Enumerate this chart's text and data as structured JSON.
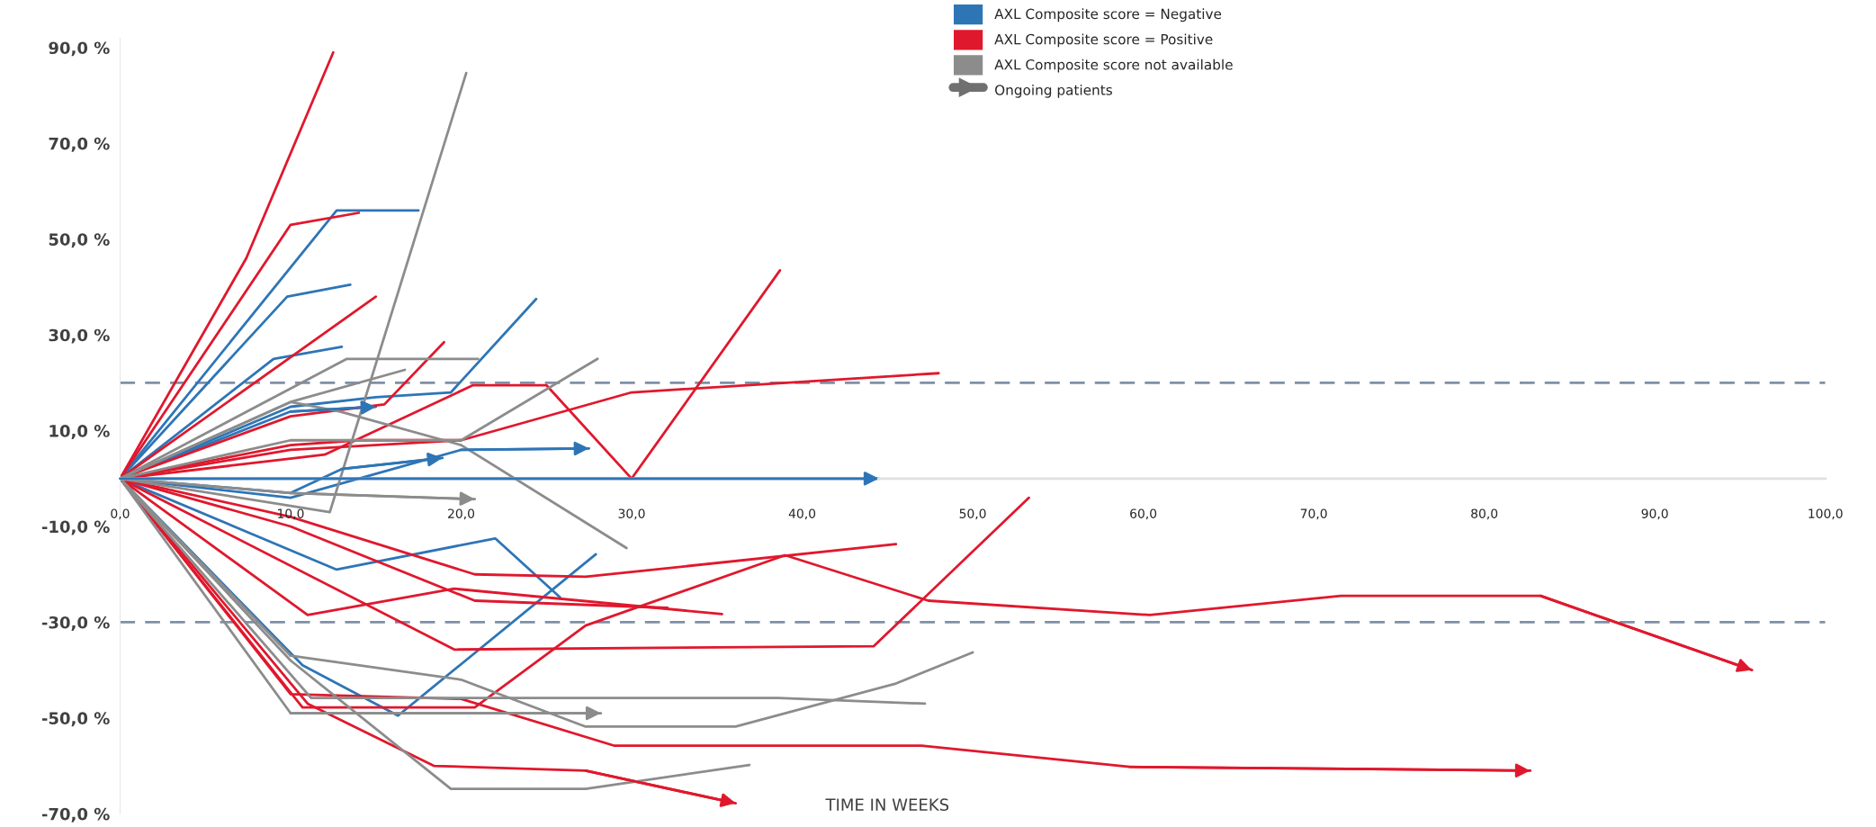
{
  "chart_data": {
    "type": "line",
    "xlabel": "TIME IN WEEKS",
    "xlim": [
      0,
      100
    ],
    "ylim": [
      -70,
      92
    ],
    "xticks": [
      {
        "value": 0,
        "label": "0,0"
      },
      {
        "value": 10,
        "label": "10,0"
      },
      {
        "value": 20,
        "label": "20,0"
      },
      {
        "value": 30,
        "label": "30,0"
      },
      {
        "value": 40,
        "label": "40,0"
      },
      {
        "value": 50,
        "label": "50,0"
      },
      {
        "value": 60,
        "label": "60,0"
      },
      {
        "value": 70,
        "label": "70,0"
      },
      {
        "value": 80,
        "label": "80,0"
      },
      {
        "value": 90,
        "label": "90,0"
      },
      {
        "value": 100,
        "label": "100,0"
      }
    ],
    "yticks": [
      {
        "value": -70,
        "label": "-70,0 %"
      },
      {
        "value": -50,
        "label": "-50,0 %"
      },
      {
        "value": -30,
        "label": "-30,0 %"
      },
      {
        "value": -10,
        "label": "-10,0 %"
      },
      {
        "value": 10,
        "label": "10,0 %"
      },
      {
        "value": 30,
        "label": "30,0 %"
      },
      {
        "value": 50,
        "label": "50,0 %"
      },
      {
        "value": 70,
        "label": "70,0 %"
      },
      {
        "value": 90,
        "label": "90,0 %"
      }
    ],
    "grid": false,
    "legend": "top right",
    "line_style": "solid",
    "annotations": [
      "Ongoing patients"
    ],
    "ref_lines": [
      {
        "axis": "y",
        "value": 20,
        "color": "#7f8fa6",
        "line_style": "dashed"
      },
      {
        "axis": "y",
        "value": -30,
        "color": "#7f8fa6",
        "line_style": "dashed"
      }
    ],
    "series": [
      {
        "name": "AXL Composite score = Negative",
        "color": "#2e75b6",
        "x": [
          0,
          12.7,
          17.5
        ],
        "values": [
          0,
          56,
          56
        ]
      },
      {
        "color": "#2e75b6",
        "x": [
          0,
          9.8,
          13.5
        ],
        "values": [
          0,
          38,
          40.5
        ]
      },
      {
        "color": "#2e75b6",
        "x": [
          0,
          9,
          13
        ],
        "values": [
          0,
          25,
          27.5
        ]
      },
      {
        "color": "#2e75b6",
        "x": [
          0,
          10,
          15,
          19.4,
          24.4
        ],
        "values": [
          0,
          15,
          17,
          18,
          37.5
        ]
      },
      {
        "color": "#2e75b6",
        "x": [
          0,
          10,
          15
        ],
        "values": [
          0,
          14,
          15
        ]
      },
      {
        "color": "#2e75b6",
        "x": [
          0,
          10,
          13,
          18.9
        ],
        "values": [
          0,
          -3,
          2,
          4.3
        ]
      },
      {
        "color": "#2e75b6",
        "x": [
          0,
          10,
          20,
          27.5
        ],
        "values": [
          0,
          -4,
          6,
          6.3
        ]
      },
      {
        "color": "#2e75b6",
        "x": [
          0,
          44.5
        ],
        "values": [
          0,
          0
        ]
      },
      {
        "color": "#2e75b6",
        "x": [
          0,
          12.7,
          22,
          25.8
        ],
        "values": [
          0,
          -19,
          -12.5,
          -24.8
        ]
      },
      {
        "color": "#2e75b6",
        "x": [
          0,
          10.7,
          16.3,
          27.9
        ],
        "values": [
          0,
          -39,
          -49.5,
          -15.8
        ]
      },
      {
        "name": "AXL Composite score = Positive",
        "color": "#e0182d",
        "x": [
          0,
          7.4,
          12.5
        ],
        "values": [
          0,
          46,
          89
        ]
      },
      {
        "color": "#e0182d",
        "x": [
          0,
          10,
          14
        ],
        "values": [
          0,
          53,
          55.5
        ]
      },
      {
        "color": "#e0182d",
        "x": [
          0,
          15
        ],
        "values": [
          0,
          38
        ]
      },
      {
        "color": "#e0182d",
        "x": [
          0,
          10,
          15.5,
          19
        ],
        "values": [
          0,
          13,
          15.5,
          28.5
        ]
      },
      {
        "color": "#e0182d",
        "x": [
          0,
          12,
          20.7,
          25,
          30,
          38.7
        ],
        "values": [
          0,
          5,
          19.5,
          19.5,
          0,
          43.5
        ]
      },
      {
        "color": "#e0182d",
        "x": [
          0,
          10,
          20,
          30,
          48
        ],
        "values": [
          0,
          6,
          8,
          18,
          22
        ]
      },
      {
        "color": "#e0182d",
        "x": [
          0,
          10,
          14,
          20
        ],
        "values": [
          0,
          7,
          8,
          8
        ]
      },
      {
        "color": "#e0182d",
        "x": [
          0,
          19.6,
          44.2,
          53.3
        ],
        "values": [
          0,
          -35.7,
          -35,
          -4
        ]
      },
      {
        "color": "#e0182d",
        "x": [
          0,
          10,
          20.8,
          27.3,
          45.5
        ],
        "values": [
          0,
          -8,
          -20,
          -20.5,
          -13.7
        ]
      },
      {
        "color": "#e0182d",
        "x": [
          0,
          11,
          19.6,
          35.3
        ],
        "values": [
          0,
          -28.5,
          -23,
          -28.3
        ]
      },
      {
        "color": "#e0182d",
        "x": [
          0,
          10,
          20.8,
          32.1
        ],
        "values": [
          0,
          -10,
          -25.5,
          -27
        ]
      },
      {
        "color": "#e0182d",
        "x": [
          0,
          10.7,
          20.8,
          27.3,
          39,
          47.4,
          60.4,
          71.6,
          83.3,
          95.7
        ],
        "values": [
          0,
          -47.8,
          -47.8,
          -30.7,
          -16,
          -25.5,
          -28.5,
          -24.5,
          -24.5,
          -40
        ]
      },
      {
        "color": "#e0182d",
        "x": [
          0,
          10,
          20,
          29,
          47,
          59.2,
          82.7
        ],
        "values": [
          0,
          -45,
          -46,
          -55.8,
          -55.8,
          -60.2,
          -61
        ]
      },
      {
        "color": "#e0182d",
        "x": [
          0,
          11,
          18.4,
          27.3,
          36.1
        ],
        "values": [
          0,
          -47,
          -60,
          -61,
          -67.8
        ]
      },
      {
        "name": "AXL Composite score not available",
        "color": "#8c8c8c",
        "x": [
          0,
          12.3,
          20.3
        ],
        "values": [
          0,
          -7,
          84.7
        ]
      },
      {
        "color": "#8c8c8c",
        "x": [
          0,
          13.3,
          21
        ],
        "values": [
          0,
          25,
          25
        ]
      },
      {
        "color": "#8c8c8c",
        "x": [
          0,
          10,
          20,
          28
        ],
        "values": [
          0,
          8,
          8,
          25
        ]
      },
      {
        "color": "#8c8c8c",
        "x": [
          0,
          10,
          16.7
        ],
        "values": [
          0,
          16,
          22.7
        ]
      },
      {
        "color": "#8c8c8c",
        "x": [
          0,
          10,
          12.9,
          20,
          29.7
        ],
        "values": [
          0,
          16,
          14,
          7,
          -14.5
        ]
      },
      {
        "color": "#8c8c8c",
        "x": [
          0,
          10,
          20.8
        ],
        "values": [
          0,
          -3,
          -4.3
        ]
      },
      {
        "color": "#8c8c8c",
        "x": [
          0,
          10,
          28.2
        ],
        "values": [
          0,
          -49,
          -49
        ]
      },
      {
        "color": "#8c8c8c",
        "x": [
          0,
          11.2,
          38.6,
          47.2
        ],
        "values": [
          0,
          -45.8,
          -45.8,
          -47
        ]
      },
      {
        "color": "#8c8c8c",
        "x": [
          0,
          10,
          20,
          27.3,
          36.1,
          45.5,
          50
        ],
        "values": [
          0,
          -37,
          -42,
          -51.8,
          -51.8,
          -42.8,
          -36.3
        ]
      },
      {
        "color": "#8c8c8c",
        "x": [
          0,
          10,
          19.4,
          27.3,
          36.9
        ],
        "values": [
          0,
          -38,
          -64.8,
          -64.8,
          -59.8
        ]
      }
    ]
  }
}
